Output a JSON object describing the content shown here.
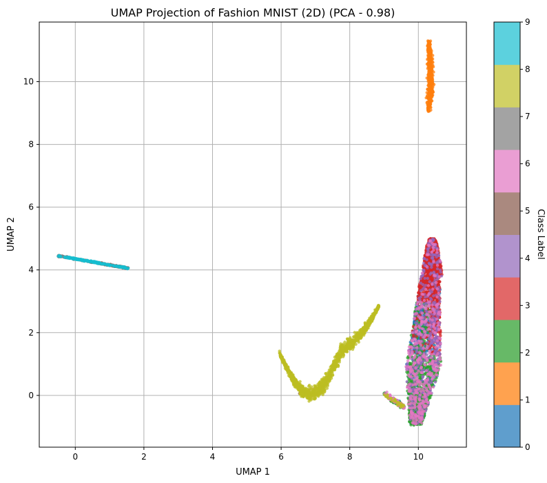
{
  "chart_data": {
    "type": "scatter",
    "title": "UMAP Projection of Fashion MNIST (2D) (PCA - 0.98)",
    "xlabel": "UMAP 1",
    "ylabel": "UMAP 2",
    "xlim": [
      -1.05,
      11.4
    ],
    "ylim": [
      -1.65,
      11.9
    ],
    "xticks": [
      0,
      2,
      4,
      6,
      8,
      10
    ],
    "yticks": [
      0,
      2,
      4,
      6,
      8,
      10
    ],
    "grid": true,
    "colorbar": {
      "label": "Class Label",
      "ticks": [
        0,
        1,
        2,
        3,
        4,
        5,
        6,
        7,
        8,
        9
      ],
      "colors": [
        "#5f9ecd",
        "#ffa24f",
        "#67b967",
        "#e26868",
        "#b193cd",
        "#aa897f",
        "#ea9ed3",
        "#a3a3a3",
        "#d1d165",
        "#5cd1de"
      ]
    },
    "marker_colors": [
      "#1f77b4",
      "#ff7f0e",
      "#2ca02c",
      "#d62728",
      "#9467bd",
      "#8c564b",
      "#e377c2",
      "#7f7f7f",
      "#bcbd22",
      "#17becf"
    ],
    "clusters": [
      {
        "class": 1,
        "description": "orange vertical cluster",
        "x_range": [
          10.15,
          10.45
        ],
        "y_range": [
          9.05,
          11.3
        ]
      },
      {
        "class": 9,
        "description": "diagonal strip (classes 7, 9, 5)",
        "from": [
          -0.5,
          4.45
        ],
        "to": [
          1.55,
          4.05
        ]
      },
      {
        "class": 8,
        "description": "yellow-green arc",
        "from": [
          5.95,
          1.35
        ],
        "to": [
          8.85,
          2.2
        ]
      },
      {
        "class": 3,
        "description": "mixed large cluster (classes 0, 2, 3, 4, 6)",
        "x_range": [
          9.3,
          10.8
        ],
        "y_range": [
          -1.0,
          5.0
        ]
      }
    ]
  }
}
